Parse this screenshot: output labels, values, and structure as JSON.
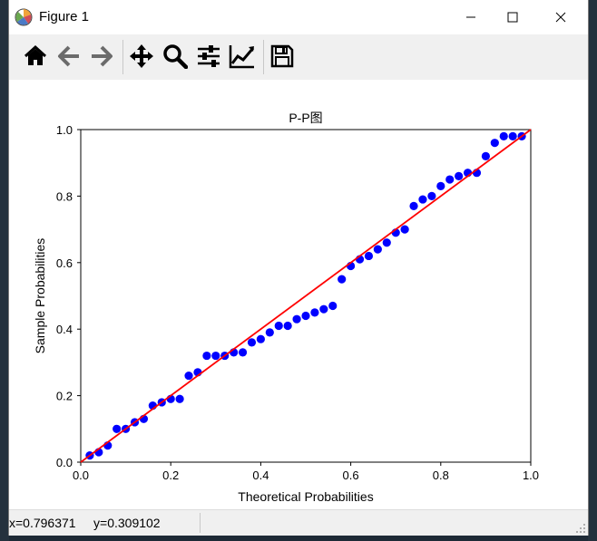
{
  "window": {
    "title": "Figure 1"
  },
  "toolbar": {
    "buttons": [
      {
        "icon": "home-icon"
      },
      {
        "icon": "back-arrow-icon"
      },
      {
        "icon": "forward-arrow-icon"
      },
      {
        "icon": "pan-move-icon"
      },
      {
        "icon": "zoom-magnifier-icon"
      },
      {
        "icon": "subplots-sliders-icon"
      },
      {
        "icon": "edit-axes-icon"
      },
      {
        "icon": "save-floppy-icon"
      }
    ]
  },
  "status": {
    "coords": "x=0.796371     y=0.309102"
  },
  "chart_data": {
    "type": "scatter",
    "title": "P-P图",
    "xlabel": "Theoretical Probabilities",
    "ylabel": "Sample Probabilities",
    "xlim": [
      0,
      1
    ],
    "ylim": [
      0,
      1
    ],
    "xticks": [
      "0.0",
      "0.2",
      "0.4",
      "0.6",
      "0.8",
      "1.0"
    ],
    "yticks": [
      "0.0",
      "0.2",
      "0.4",
      "0.6",
      "0.8",
      "1.0"
    ],
    "grid": false,
    "point_color": "#0000ff",
    "line_color": "#ff0000",
    "series": [
      {
        "type": "scatter",
        "x": [
          0.02,
          0.04,
          0.06,
          0.08,
          0.1,
          0.12,
          0.14,
          0.16,
          0.18,
          0.2,
          0.22,
          0.24,
          0.26,
          0.28,
          0.3,
          0.32,
          0.34,
          0.36,
          0.38,
          0.4,
          0.42,
          0.44,
          0.46,
          0.48,
          0.5,
          0.52,
          0.54,
          0.56,
          0.58,
          0.6,
          0.62,
          0.64,
          0.66,
          0.68,
          0.7,
          0.72,
          0.74,
          0.76,
          0.78,
          0.8,
          0.82,
          0.84,
          0.86,
          0.88,
          0.9,
          0.92,
          0.94,
          0.96,
          0.98
        ],
        "y": [
          0.02,
          0.03,
          0.05,
          0.1,
          0.1,
          0.12,
          0.13,
          0.17,
          0.18,
          0.19,
          0.19,
          0.26,
          0.27,
          0.32,
          0.32,
          0.32,
          0.33,
          0.33,
          0.36,
          0.37,
          0.39,
          0.41,
          0.41,
          0.43,
          0.44,
          0.45,
          0.46,
          0.47,
          0.55,
          0.59,
          0.61,
          0.62,
          0.64,
          0.66,
          0.69,
          0.7,
          0.77,
          0.79,
          0.8,
          0.83,
          0.85,
          0.86,
          0.87,
          0.87,
          0.92,
          0.96,
          0.98,
          0.98,
          0.98
        ]
      },
      {
        "type": "line",
        "x": [
          0,
          1
        ],
        "y": [
          0,
          1
        ]
      }
    ]
  }
}
